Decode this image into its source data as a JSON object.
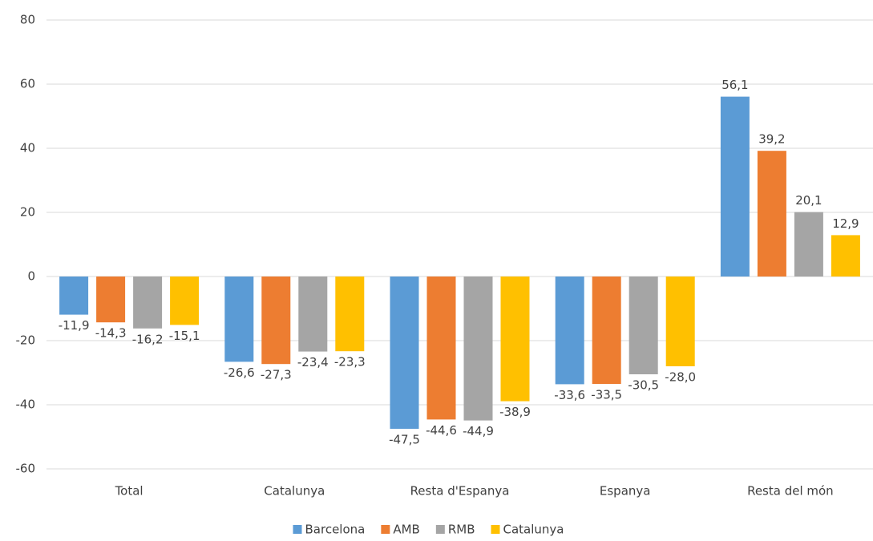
{
  "chart_data": {
    "type": "bar",
    "categories": [
      "Total",
      "Catalunya",
      "Resta d'Espanya",
      "Espanya",
      "Resta del món"
    ],
    "series": [
      {
        "name": "Barcelona",
        "color": "#5b9bd5",
        "values": [
          -11.9,
          -26.6,
          -47.5,
          -33.6,
          56.1
        ],
        "value_labels": [
          "-11,9",
          "-26,6",
          "-47,5",
          "-33,6",
          "56,1"
        ]
      },
      {
        "name": "AMB",
        "color": "#ed7d31",
        "values": [
          -14.3,
          -27.3,
          -44.6,
          -33.5,
          39.2
        ],
        "value_labels": [
          "-14,3",
          "-27,3",
          "-44,6",
          "-33,5",
          "39,2"
        ]
      },
      {
        "name": "RMB",
        "color": "#a5a5a5",
        "values": [
          -16.2,
          -23.4,
          -44.9,
          -30.5,
          20.1
        ],
        "value_labels": [
          "-16,2",
          "-23,4",
          "-44,9",
          "-30,5",
          "20,1"
        ]
      },
      {
        "name": "Catalunya",
        "color": "#ffc000",
        "values": [
          -15.1,
          -23.3,
          -38.9,
          -28.0,
          12.9
        ],
        "value_labels": [
          "-15,1",
          "-23,3",
          "-38,9",
          "-28,0",
          "12,9"
        ]
      }
    ],
    "ylim": [
      -60,
      80
    ],
    "yticks": [
      -60,
      -40,
      -20,
      0,
      20,
      40,
      60,
      80
    ],
    "grid": true,
    "legend": "bottom"
  }
}
